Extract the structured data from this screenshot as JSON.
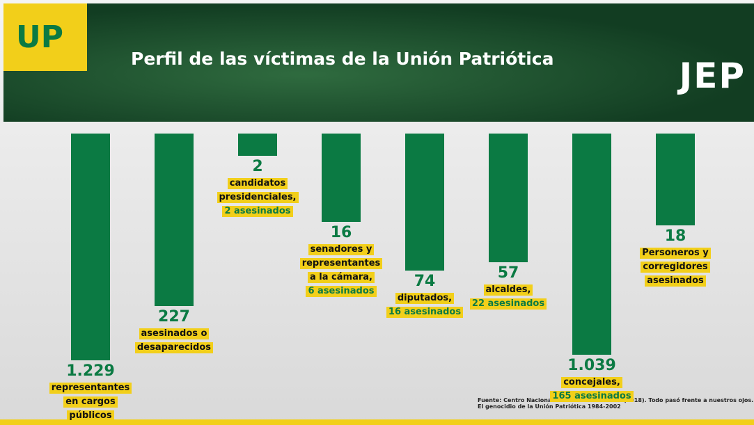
{
  "header": {
    "badge": "UP",
    "logo": "JEP"
  },
  "chart_data": {
    "type": "bar",
    "title": "Perfil de las víctimas de la Unión Patriótica",
    "orientation": "hanging",
    "log_scale": true,
    "ylim": [
      1,
      2000
    ],
    "color": "#0b7a43",
    "categories": [
      [
        "representantes",
        "en cargos",
        "públicos"
      ],
      [
        "asesinados o",
        "desaparecidos"
      ],
      [
        "candidatos",
        "presidenciales,"
      ],
      [
        "senadores y",
        "representantes",
        "a la cámara,"
      ],
      [
        "diputados,"
      ],
      [
        "alcaldes,"
      ],
      [
        "concejales,"
      ],
      [
        "Personeros y",
        "corregidores",
        "asesinados"
      ]
    ],
    "killed": [
      null,
      null,
      "2 asesinados",
      "6 asesinados",
      "16 asesinados",
      "22 asesinados",
      "165 asesinados",
      null
    ],
    "values": [
      1229,
      227,
      2,
      16,
      74,
      57,
      1039,
      18
    ],
    "value_labels": [
      "1.229",
      "227",
      "2",
      "16",
      "74",
      "57",
      "1.039",
      "18"
    ]
  },
  "source": [
    "Fuente:  Centro Nacional de Memoria histórica (2018). Todo pasó frente a nuestros ojos.",
    "El genocidio de la Unión Patriótica 1984-2002"
  ]
}
